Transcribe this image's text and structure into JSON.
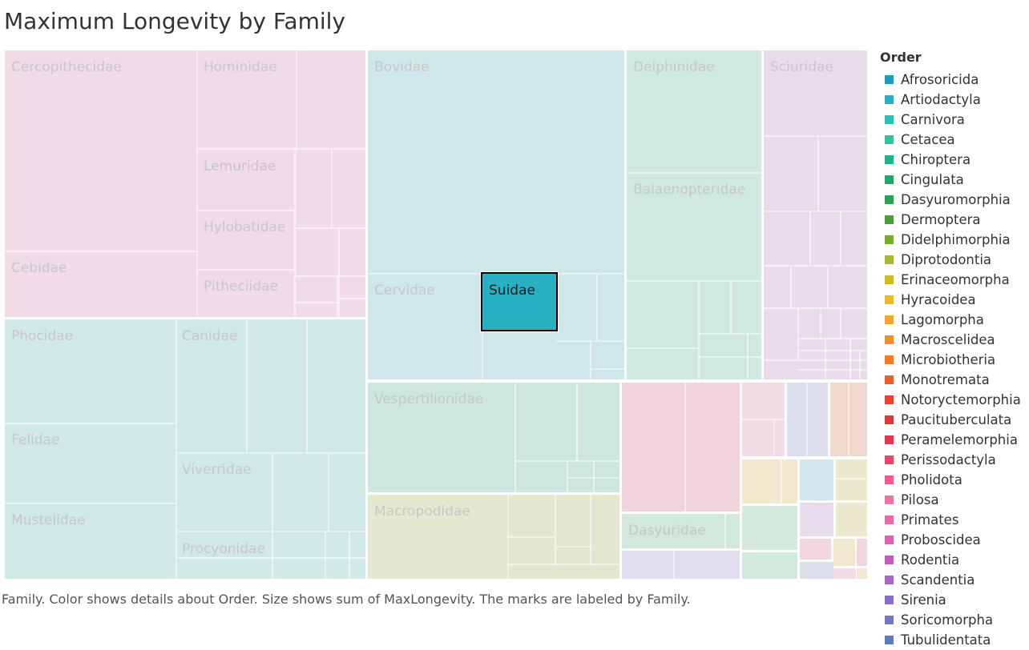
{
  "title": "Maximum Longevity by Family",
  "caption": "Family.  Color shows details about Order.  Size shows sum of MaxLongevity.  The marks are labeled by Family.",
  "legend": {
    "title": "Order",
    "items": [
      {
        "label": "Afrosoricida",
        "color": "#1f9bbd"
      },
      {
        "label": "Artiodactyla",
        "color": "#29b1c3"
      },
      {
        "label": "Carnivora",
        "color": "#2fbfb6"
      },
      {
        "label": "Cetacea",
        "color": "#33c0a3"
      },
      {
        "label": "Chiroptera",
        "color": "#25b08c"
      },
      {
        "label": "Cingulata",
        "color": "#1fa76c"
      },
      {
        "label": "Dasyuromorphia",
        "color": "#2fa24f"
      },
      {
        "label": "Dermoptera",
        "color": "#4c9e3a"
      },
      {
        "label": "Didelphimorphia",
        "color": "#7aab30"
      },
      {
        "label": "Diprotodontia",
        "color": "#a9b82c"
      },
      {
        "label": "Erinaceomorpha",
        "color": "#d2b928"
      },
      {
        "label": "Hyracoidea",
        "color": "#ebb92a"
      },
      {
        "label": "Lagomorpha",
        "color": "#f4a531"
      },
      {
        "label": "Macroscelidea",
        "color": "#f38f2b"
      },
      {
        "label": "Microbiotheria",
        "color": "#f27a25"
      },
      {
        "label": "Monotremata",
        "color": "#ea6028"
      },
      {
        "label": "Notoryctemorphia",
        "color": "#e5432f"
      },
      {
        "label": "Paucituberculata",
        "color": "#e0373b"
      },
      {
        "label": "Peramelemorphia",
        "color": "#e23750"
      },
      {
        "label": "Perissodactyla",
        "color": "#e7456b"
      },
      {
        "label": "Pholidota",
        "color": "#ec5e8b"
      },
      {
        "label": "Pilosa",
        "color": "#ee72a4"
      },
      {
        "label": "Primates",
        "color": "#e86aa8"
      },
      {
        "label": "Proboscidea",
        "color": "#d964b2"
      },
      {
        "label": "Rodentia",
        "color": "#c05dbc"
      },
      {
        "label": "Scandentia",
        "color": "#a668c2"
      },
      {
        "label": "Sirenia",
        "color": "#8b6fc4"
      },
      {
        "label": "Soricomorpha",
        "color": "#7377c2"
      },
      {
        "label": "Tubulidentata",
        "color": "#5f7bbd"
      }
    ]
  },
  "chart_data": {
    "type": "treemap",
    "size_measure": "MaxLongevity",
    "color_dimension": "Order",
    "label_dimension": "Family",
    "highlighted": "Suidae",
    "families": [
      {
        "family": "Cercopithecidae",
        "order": "Primates",
        "value": 1524
      },
      {
        "family": "Cebidae",
        "order": "Primates",
        "value": 512
      },
      {
        "family": "Hominidae",
        "order": "Primates",
        "value": 568
      },
      {
        "family": "Lemuridae",
        "order": "Primates",
        "value": 252
      },
      {
        "family": "Hylobatidae",
        "order": "Primates",
        "value": 240
      },
      {
        "family": "Pitheciidae",
        "order": "Primates",
        "value": 208
      },
      {
        "family": "Bovidae",
        "order": "Artiodactyla",
        "value": 2860
      },
      {
        "family": "Cervidae",
        "order": "Artiodactyla",
        "value": 480
      },
      {
        "family": "Suidae",
        "order": "Artiodactyla",
        "value": 280
      },
      {
        "family": "Delphinidae",
        "order": "Cetacea",
        "value": 720
      },
      {
        "family": "Balaenopteridae",
        "order": "Cetacea",
        "value": 612
      },
      {
        "family": "Sciuridae",
        "order": "Rodentia",
        "value": 432
      },
      {
        "family": "Phocidae",
        "order": "Carnivora",
        "value": 840
      },
      {
        "family": "Felidae",
        "order": "Carnivora",
        "value": 540
      },
      {
        "family": "Mustelidae",
        "order": "Carnivora",
        "value": 520
      },
      {
        "family": "Canidae",
        "order": "Carnivora",
        "value": 380
      },
      {
        "family": "Viverridae",
        "order": "Carnivora",
        "value": 200
      },
      {
        "family": "Procyonidae",
        "order": "Carnivora",
        "value": 120
      },
      {
        "family": "Vespertilionidae",
        "order": "Chiroptera",
        "value": 640
      },
      {
        "family": "Macropodidae",
        "order": "Diprotodontia",
        "value": 416
      },
      {
        "family": "Dasyuridae",
        "order": "Dasyuromorphia",
        "value": 104
      }
    ]
  }
}
